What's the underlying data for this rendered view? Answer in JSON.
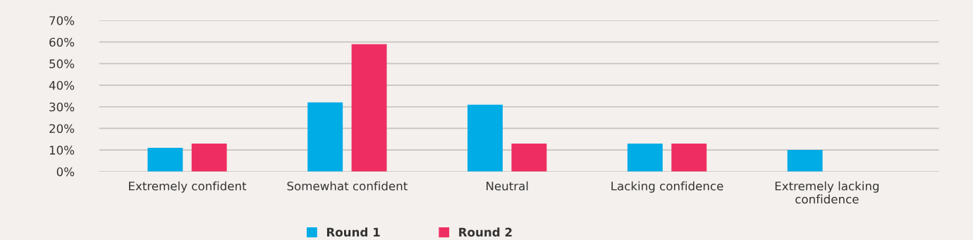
{
  "chart_data": {
    "type": "bar",
    "categories": [
      "Extremely confident",
      "Somewhat confident",
      "Neutral",
      "Lacking confidence",
      "Extremely lacking\nconfidence"
    ],
    "series": [
      {
        "name": "Round 1",
        "color": "#00ace6",
        "values": [
          11,
          32,
          31,
          13,
          10
        ]
      },
      {
        "name": "Round 2",
        "color": "#ee2e62",
        "values": [
          13,
          59,
          13,
          13,
          null
        ]
      }
    ],
    "ylim": [
      0,
      70
    ],
    "yticks": [
      {
        "value": 0,
        "label": "0%"
      },
      {
        "value": 10,
        "label": "10%"
      },
      {
        "value": 20,
        "label": "20%"
      },
      {
        "value": 30,
        "label": "30%"
      },
      {
        "value": 40,
        "label": "40%"
      },
      {
        "value": 50,
        "label": "50%"
      },
      {
        "value": 60,
        "label": "60%"
      },
      {
        "value": 70,
        "label": "70%"
      }
    ],
    "grid": "y",
    "legend": "bottom"
  }
}
